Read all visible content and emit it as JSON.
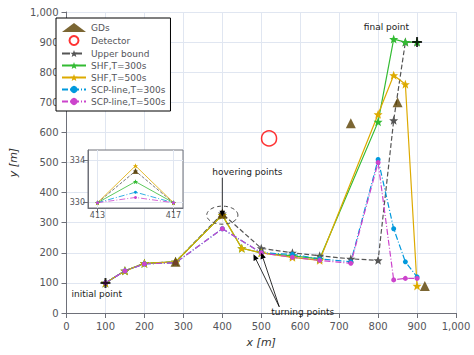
{
  "chart_data": [
    {
      "type": "line",
      "xlabel": "x [m]",
      "ylabel": "y [m]",
      "xlim": [
        0,
        1000
      ],
      "ylim": [
        0,
        1000
      ],
      "xticks": [
        0,
        100,
        200,
        300,
        400,
        500,
        600,
        700,
        800,
        900,
        1000
      ],
      "yticks": [
        0,
        100,
        200,
        300,
        400,
        500,
        600,
        700,
        800,
        900,
        1000
      ],
      "grid": true,
      "legend": "upper left",
      "series": [
        {
          "name": "GDs",
          "type": "scatter",
          "marker": "triangle",
          "color": "#5a4000",
          "x": [
            280,
            400,
            730,
            850,
            920
          ],
          "values": [
            170,
            330,
            630,
            700,
            90
          ]
        },
        {
          "name": "Detector",
          "type": "scatter",
          "marker": "open_circle",
          "color": "red",
          "x": [
            520
          ],
          "values": [
            580
          ]
        },
        {
          "name": "Upper bound",
          "type": "line",
          "marker": "star",
          "line_style": "dashed",
          "color": "#555555",
          "x": [
            100,
            150,
            200,
            280,
            400,
            500,
            580,
            650,
            730,
            800,
            840,
            870,
            900
          ],
          "values": [
            100,
            140,
            165,
            170,
            330,
            215,
            200,
            190,
            180,
            175,
            640,
            900,
            900
          ]
        },
        {
          "name": "SHF,T=300s",
          "type": "line",
          "marker": "star",
          "line_style": "solid",
          "color": "#33bb33",
          "x": [
            100,
            150,
            200,
            280,
            400,
            450,
            500,
            580,
            650,
            800,
            840,
            870,
            900
          ],
          "values": [
            100,
            140,
            165,
            170,
            325,
            215,
            200,
            190,
            180,
            635,
            910,
            900,
            900
          ]
        },
        {
          "name": "SHF,T=500s",
          "type": "line",
          "marker": "star",
          "line_style": "solid",
          "color": "#ddaa00",
          "x": [
            100,
            150,
            200,
            280,
            400,
            450,
            500,
            580,
            650,
            800,
            840,
            870,
            900
          ],
          "values": [
            100,
            140,
            165,
            170,
            325,
            215,
            200,
            185,
            175,
            660,
            790,
            760,
            90
          ]
        },
        {
          "name": "SCP-line,T=300s",
          "type": "line",
          "marker": "circle",
          "line_style": "dashdot",
          "color": "#0099dd",
          "x": [
            100,
            150,
            200,
            280,
            400,
            500,
            580,
            650,
            730,
            800,
            840,
            870,
            900
          ],
          "values": [
            100,
            140,
            163,
            167,
            280,
            200,
            195,
            180,
            170,
            510,
            280,
            170,
            120
          ]
        },
        {
          "name": "SCP-line,T=500s",
          "type": "line",
          "marker": "circle",
          "line_style": "dashdot",
          "color": "#cc44cc",
          "x": [
            100,
            150,
            200,
            280,
            400,
            500,
            580,
            650,
            730,
            800,
            840,
            870,
            900
          ],
          "values": [
            100,
            140,
            163,
            167,
            280,
            200,
            185,
            175,
            165,
            500,
            110,
            115,
            115
          ]
        }
      ],
      "points": [
        {
          "label": "initial point",
          "marker": "plus",
          "color": "black",
          "x": 100,
          "y": 100
        },
        {
          "label": "final point",
          "marker": "plus",
          "color": "black",
          "x": 900,
          "y": 900
        }
      ],
      "ellipse": {
        "x": 400,
        "y": 325,
        "width": 80,
        "height": 60
      },
      "annotations": [
        {
          "text": "turning points",
          "targets": [
            [
              500,
              200
            ],
            [
              480,
              195
            ]
          ]
        },
        {
          "text": "hovering points",
          "targets": [
            [
              400,
              320
            ]
          ]
        }
      ]
    },
    {
      "type": "line",
      "xlim": [
        412.5,
        417.5
      ],
      "ylim": [
        329.5,
        335.0
      ],
      "xticks": [
        413,
        417
      ],
      "yticks": [
        330,
        334
      ],
      "grid": true,
      "series": [
        {
          "name": "Upper bound",
          "type": "line",
          "marker": "star",
          "line_style": "dashed",
          "color": "#555555",
          "x": [
            413,
            415,
            417
          ],
          "values": [
            330,
            333,
            330
          ]
        },
        {
          "name": "SHF,T=300s",
          "type": "line",
          "marker": "star",
          "line_style": "solid",
          "color": "#33bb33",
          "x": [
            413,
            415,
            417
          ],
          "values": [
            330,
            332,
            330
          ]
        },
        {
          "name": "SHF,T=500s",
          "type": "line",
          "marker": "star",
          "line_style": "solid",
          "color": "#ddaa00",
          "x": [
            413,
            415,
            417
          ],
          "values": [
            330,
            333.5,
            330
          ]
        },
        {
          "name": "SCP-line,T=300s",
          "type": "line",
          "marker": "circle",
          "line_style": "dashdot",
          "color": "#0099dd",
          "x": [
            413,
            415,
            417
          ],
          "values": [
            330,
            331,
            330
          ]
        },
        {
          "name": "SCP-line,T=500s",
          "type": "line",
          "marker": "circle",
          "line_style": "dashdot",
          "color": "#cc44cc",
          "x": [
            413,
            415,
            417
          ],
          "values": [
            330,
            330.5,
            330
          ]
        },
        {
          "name": "GDs",
          "type": "scatter",
          "marker": "triangle",
          "color": "#5a4000",
          "x": [
            415
          ],
          "values": [
            333
          ]
        }
      ]
    }
  ]
}
